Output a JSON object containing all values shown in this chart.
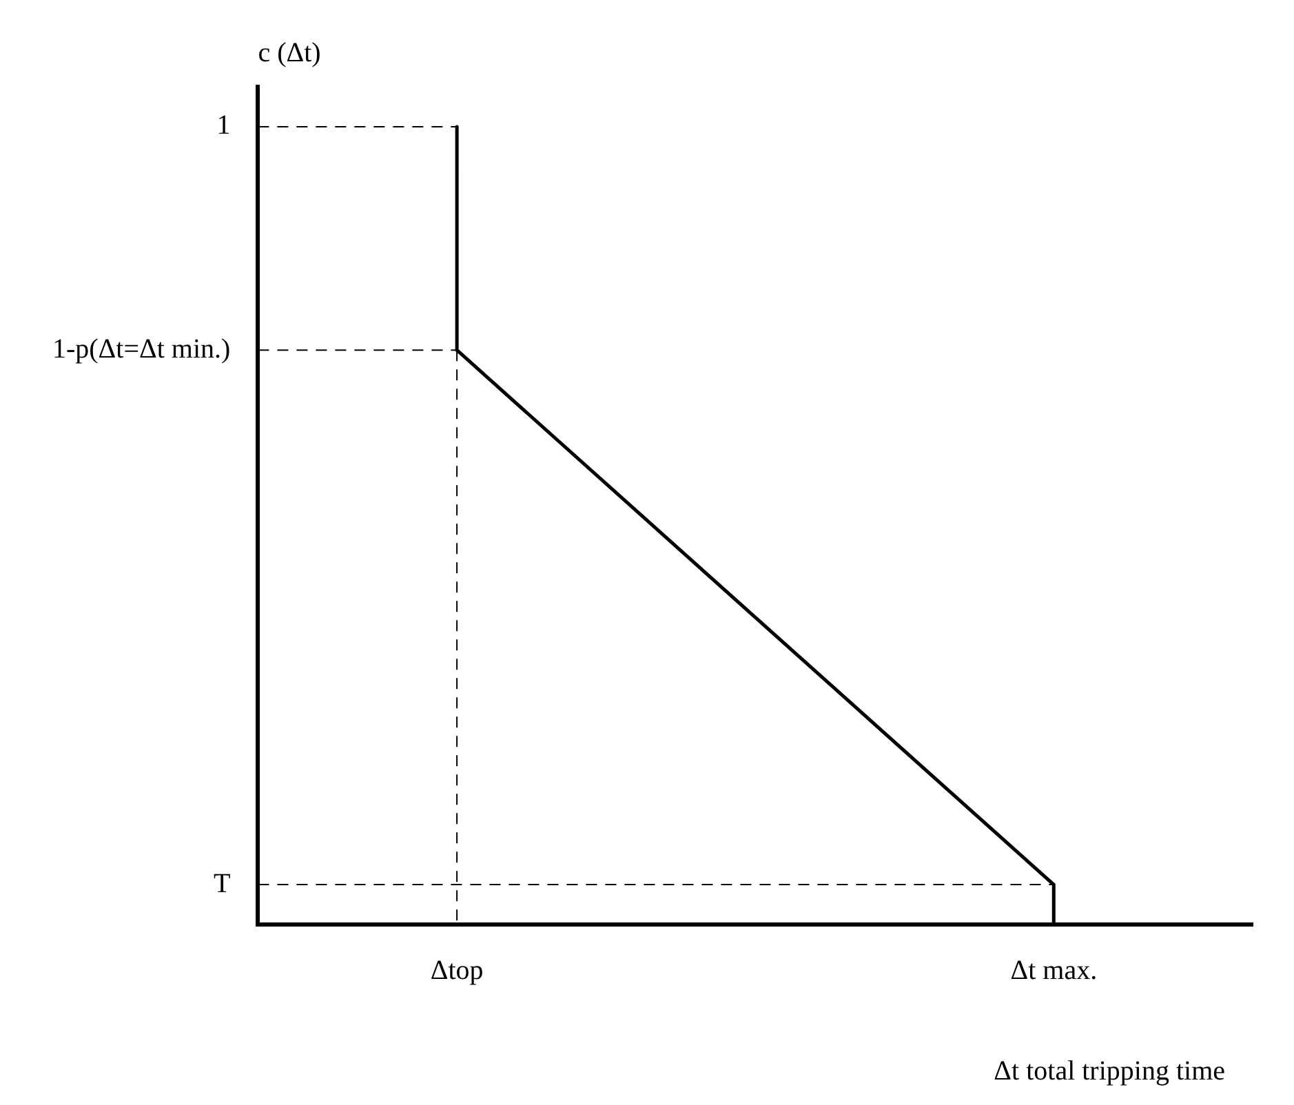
{
  "chart_data": {
    "type": "line",
    "xlabel": "Δt total tripping time",
    "ylabel": "c (Δt)",
    "marker": "none",
    "categories": [
      null,
      "Δtop",
      null,
      null,
      "Δt max.",
      null
    ],
    "ylim": [
      0,
      1.05
    ],
    "yticks": [
      1,
      {
        "value": 0.72,
        "label": "1-p(Δt=Δt min.)"
      },
      {
        "value": 0.05,
        "label": "T"
      }
    ],
    "series": [
      {
        "color": "#000000",
        "x": [
          "Δtop",
          "Δtop",
          "Δt max.",
          "Δt max."
        ],
        "values": [
          1,
          0.72,
          0.05,
          0
        ]
      },
      {
        "color": "#000000",
        "line_style": "dashed",
        "values": [
          1,
          1,
          null,
          null,
          null,
          null
        ]
      },
      {
        "color": "#000000",
        "line_style": "dashed",
        "values": [
          0.72,
          0.72,
          null,
          null,
          null,
          null
        ]
      },
      {
        "color": "#000000",
        "line_style": "dashed",
        "values": [
          0.05,
          0.05,
          0.05,
          0.05,
          0.05,
          null
        ]
      },
      {
        "color": "#000000",
        "line_style": "dashed",
        "x": [
          "Δtop",
          "Δtop"
        ],
        "values": [
          0.72,
          0
        ]
      }
    ]
  }
}
